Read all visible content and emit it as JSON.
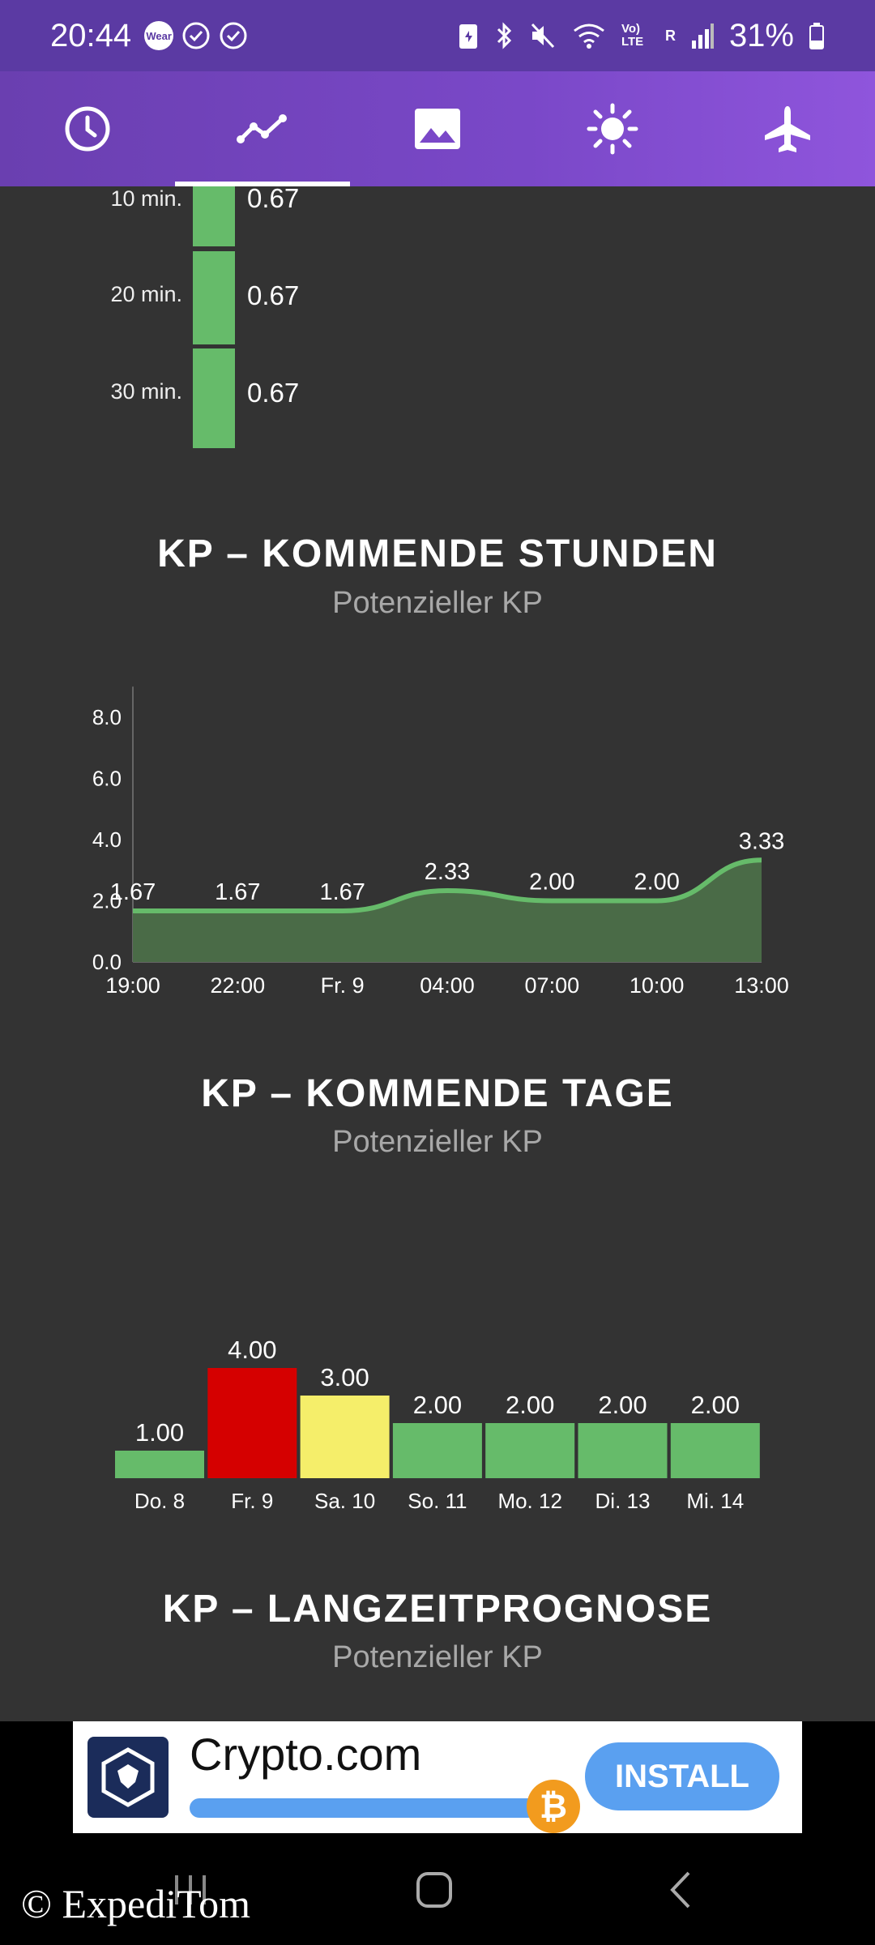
{
  "status_bar": {
    "time": "20:44",
    "wear_badge": "Wear",
    "network_label": "Vo) LTE",
    "roaming_label": "R",
    "battery": "31%"
  },
  "nav_tabs": [
    {
      "icon": "clock-icon",
      "active": false
    },
    {
      "icon": "chart-line-icon",
      "active": true
    },
    {
      "icon": "image-icon",
      "active": false
    },
    {
      "icon": "sun-icon",
      "active": false
    },
    {
      "icon": "airplane-icon",
      "active": false
    }
  ],
  "minute_forecast": [
    {
      "label": "10 min.",
      "value": "0.67"
    },
    {
      "label": "20 min.",
      "value": "0.67"
    },
    {
      "label": "30 min.",
      "value": "0.67"
    }
  ],
  "hours_section": {
    "title": "KP – KOMMENDE STUNDEN",
    "subtitle": "Potenzieller KP"
  },
  "days_section": {
    "title": "KP – KOMMENDE TAGE",
    "subtitle": "Potenzieller KP"
  },
  "longterm_section": {
    "title": "KP – LANGZEITPROGNOSE",
    "subtitle": "Potenzieller KP"
  },
  "chart_data": [
    {
      "type": "area",
      "categories": [
        "19:00",
        "22:00",
        "Fr. 9",
        "04:00",
        "07:00",
        "10:00",
        "13:00"
      ],
      "values": [
        1.67,
        1.67,
        1.67,
        2.33,
        2.0,
        2.0,
        3.33
      ],
      "value_labels": [
        "1.67",
        "1.67",
        "1.67",
        "2.33",
        "2.00",
        "2.00",
        "3.33"
      ],
      "yticks": [
        "0.0",
        "2.0",
        "4.0",
        "6.0",
        "8.0"
      ],
      "ylim": [
        0,
        9
      ],
      "color": "#66bb6a"
    },
    {
      "type": "bar",
      "categories": [
        "Do. 8",
        "Fr. 9",
        "Sa. 10",
        "So. 11",
        "Mo. 12",
        "Di. 13",
        "Mi. 14"
      ],
      "values": [
        1.0,
        4.0,
        3.0,
        2.0,
        2.0,
        2.0,
        2.0
      ],
      "value_labels": [
        "1.00",
        "4.00",
        "3.00",
        "2.00",
        "2.00",
        "2.00",
        "2.00"
      ],
      "colors": [
        "#66bb6a",
        "#d50000",
        "#f5ee6a",
        "#66bb6a",
        "#66bb6a",
        "#66bb6a",
        "#66bb6a"
      ]
    }
  ],
  "ad": {
    "brand": "Crypto.com",
    "install_label": "INSTALL",
    "coin_symbol": "₿"
  },
  "watermark": "© ExpediTom"
}
